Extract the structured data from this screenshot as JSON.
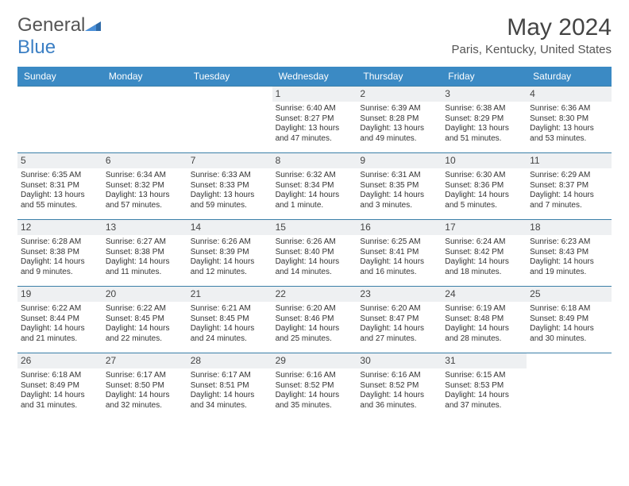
{
  "brand": {
    "part1": "General",
    "part2": "Blue"
  },
  "title": "May 2024",
  "location": "Paris, Kentucky, United States",
  "colors": {
    "header_bg": "#3b8ac4",
    "border": "#3b7fa8",
    "daynum_bg": "#eef0f2",
    "logo_blue": "#3b7fc4"
  },
  "dayNames": [
    "Sunday",
    "Monday",
    "Tuesday",
    "Wednesday",
    "Thursday",
    "Friday",
    "Saturday"
  ],
  "leadingBlanks": 3,
  "trailingBlanks": 1,
  "days": [
    {
      "n": "1",
      "sr": "Sunrise: 6:40 AM",
      "ss": "Sunset: 8:27 PM",
      "d1": "Daylight: 13 hours",
      "d2": "and 47 minutes."
    },
    {
      "n": "2",
      "sr": "Sunrise: 6:39 AM",
      "ss": "Sunset: 8:28 PM",
      "d1": "Daylight: 13 hours",
      "d2": "and 49 minutes."
    },
    {
      "n": "3",
      "sr": "Sunrise: 6:38 AM",
      "ss": "Sunset: 8:29 PM",
      "d1": "Daylight: 13 hours",
      "d2": "and 51 minutes."
    },
    {
      "n": "4",
      "sr": "Sunrise: 6:36 AM",
      "ss": "Sunset: 8:30 PM",
      "d1": "Daylight: 13 hours",
      "d2": "and 53 minutes."
    },
    {
      "n": "5",
      "sr": "Sunrise: 6:35 AM",
      "ss": "Sunset: 8:31 PM",
      "d1": "Daylight: 13 hours",
      "d2": "and 55 minutes."
    },
    {
      "n": "6",
      "sr": "Sunrise: 6:34 AM",
      "ss": "Sunset: 8:32 PM",
      "d1": "Daylight: 13 hours",
      "d2": "and 57 minutes."
    },
    {
      "n": "7",
      "sr": "Sunrise: 6:33 AM",
      "ss": "Sunset: 8:33 PM",
      "d1": "Daylight: 13 hours",
      "d2": "and 59 minutes."
    },
    {
      "n": "8",
      "sr": "Sunrise: 6:32 AM",
      "ss": "Sunset: 8:34 PM",
      "d1": "Daylight: 14 hours",
      "d2": "and 1 minute."
    },
    {
      "n": "9",
      "sr": "Sunrise: 6:31 AM",
      "ss": "Sunset: 8:35 PM",
      "d1": "Daylight: 14 hours",
      "d2": "and 3 minutes."
    },
    {
      "n": "10",
      "sr": "Sunrise: 6:30 AM",
      "ss": "Sunset: 8:36 PM",
      "d1": "Daylight: 14 hours",
      "d2": "and 5 minutes."
    },
    {
      "n": "11",
      "sr": "Sunrise: 6:29 AM",
      "ss": "Sunset: 8:37 PM",
      "d1": "Daylight: 14 hours",
      "d2": "and 7 minutes."
    },
    {
      "n": "12",
      "sr": "Sunrise: 6:28 AM",
      "ss": "Sunset: 8:38 PM",
      "d1": "Daylight: 14 hours",
      "d2": "and 9 minutes."
    },
    {
      "n": "13",
      "sr": "Sunrise: 6:27 AM",
      "ss": "Sunset: 8:38 PM",
      "d1": "Daylight: 14 hours",
      "d2": "and 11 minutes."
    },
    {
      "n": "14",
      "sr": "Sunrise: 6:26 AM",
      "ss": "Sunset: 8:39 PM",
      "d1": "Daylight: 14 hours",
      "d2": "and 12 minutes."
    },
    {
      "n": "15",
      "sr": "Sunrise: 6:26 AM",
      "ss": "Sunset: 8:40 PM",
      "d1": "Daylight: 14 hours",
      "d2": "and 14 minutes."
    },
    {
      "n": "16",
      "sr": "Sunrise: 6:25 AM",
      "ss": "Sunset: 8:41 PM",
      "d1": "Daylight: 14 hours",
      "d2": "and 16 minutes."
    },
    {
      "n": "17",
      "sr": "Sunrise: 6:24 AM",
      "ss": "Sunset: 8:42 PM",
      "d1": "Daylight: 14 hours",
      "d2": "and 18 minutes."
    },
    {
      "n": "18",
      "sr": "Sunrise: 6:23 AM",
      "ss": "Sunset: 8:43 PM",
      "d1": "Daylight: 14 hours",
      "d2": "and 19 minutes."
    },
    {
      "n": "19",
      "sr": "Sunrise: 6:22 AM",
      "ss": "Sunset: 8:44 PM",
      "d1": "Daylight: 14 hours",
      "d2": "and 21 minutes."
    },
    {
      "n": "20",
      "sr": "Sunrise: 6:22 AM",
      "ss": "Sunset: 8:45 PM",
      "d1": "Daylight: 14 hours",
      "d2": "and 22 minutes."
    },
    {
      "n": "21",
      "sr": "Sunrise: 6:21 AM",
      "ss": "Sunset: 8:45 PM",
      "d1": "Daylight: 14 hours",
      "d2": "and 24 minutes."
    },
    {
      "n": "22",
      "sr": "Sunrise: 6:20 AM",
      "ss": "Sunset: 8:46 PM",
      "d1": "Daylight: 14 hours",
      "d2": "and 25 minutes."
    },
    {
      "n": "23",
      "sr": "Sunrise: 6:20 AM",
      "ss": "Sunset: 8:47 PM",
      "d1": "Daylight: 14 hours",
      "d2": "and 27 minutes."
    },
    {
      "n": "24",
      "sr": "Sunrise: 6:19 AM",
      "ss": "Sunset: 8:48 PM",
      "d1": "Daylight: 14 hours",
      "d2": "and 28 minutes."
    },
    {
      "n": "25",
      "sr": "Sunrise: 6:18 AM",
      "ss": "Sunset: 8:49 PM",
      "d1": "Daylight: 14 hours",
      "d2": "and 30 minutes."
    },
    {
      "n": "26",
      "sr": "Sunrise: 6:18 AM",
      "ss": "Sunset: 8:49 PM",
      "d1": "Daylight: 14 hours",
      "d2": "and 31 minutes."
    },
    {
      "n": "27",
      "sr": "Sunrise: 6:17 AM",
      "ss": "Sunset: 8:50 PM",
      "d1": "Daylight: 14 hours",
      "d2": "and 32 minutes."
    },
    {
      "n": "28",
      "sr": "Sunrise: 6:17 AM",
      "ss": "Sunset: 8:51 PM",
      "d1": "Daylight: 14 hours",
      "d2": "and 34 minutes."
    },
    {
      "n": "29",
      "sr": "Sunrise: 6:16 AM",
      "ss": "Sunset: 8:52 PM",
      "d1": "Daylight: 14 hours",
      "d2": "and 35 minutes."
    },
    {
      "n": "30",
      "sr": "Sunrise: 6:16 AM",
      "ss": "Sunset: 8:52 PM",
      "d1": "Daylight: 14 hours",
      "d2": "and 36 minutes."
    },
    {
      "n": "31",
      "sr": "Sunrise: 6:15 AM",
      "ss": "Sunset: 8:53 PM",
      "d1": "Daylight: 14 hours",
      "d2": "and 37 minutes."
    }
  ]
}
